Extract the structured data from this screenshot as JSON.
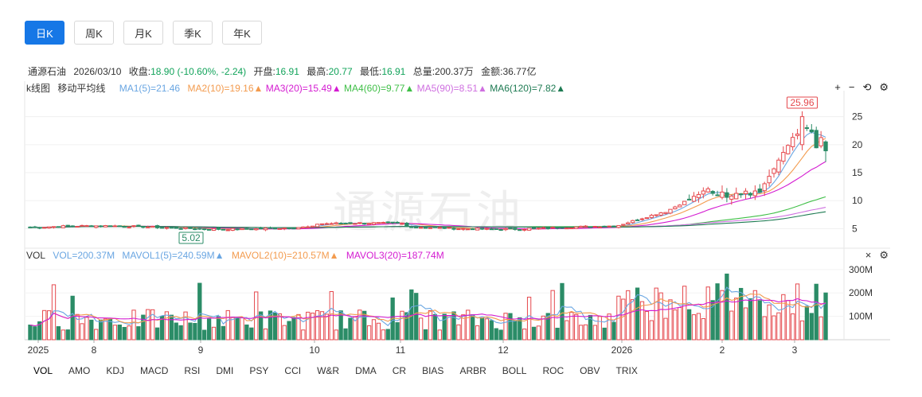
{
  "periods": [
    "日K",
    "周K",
    "月K",
    "季K",
    "年K"
  ],
  "active_period": 0,
  "stock": {
    "name": "通源石油",
    "date": "2026/03/10",
    "close_label": "收盘:",
    "close_value": "18.90 (-10.60%, -2.24)",
    "open_label": "开盘:",
    "open_value": "16.91",
    "high_label": "最高:",
    "high_value": "20.77",
    "low_label": "最低:",
    "low_value": "16.91",
    "volume_label": "总量:",
    "volume_value": "200.37万",
    "amount_label": "金额:",
    "amount_value": "36.77亿"
  },
  "kline": {
    "chart_label": "k线图",
    "ma_type": "移动平均线",
    "ma": [
      {
        "text": "MA1(5)=21.46",
        "color": "#6aa6e2"
      },
      {
        "text": "MA2(10)=19.16▲",
        "color": "#f39b4e"
      },
      {
        "text": "MA3(20)=15.49▲",
        "color": "#d41bd1"
      },
      {
        "text": "MA4(60)=9.77▲",
        "color": "#3fbf47"
      },
      {
        "text": "MA5(90)=8.51▲",
        "color": "#cf6fe0"
      },
      {
        "text": "MA6(120)=7.82▲",
        "color": "#1d7a52"
      }
    ],
    "tools": {
      "plus": "+",
      "minus": "−",
      "reset": "⟲",
      "settings": "⚙"
    },
    "watermark": "通源石油"
  },
  "volume": {
    "vol_text": "VOL",
    "vol_value": "VOL=200.37M",
    "mavol": [
      {
        "text": "MAVOL1(5)=240.59M▲",
        "color": "#6aa6e2"
      },
      {
        "text": "MAVOL2(10)=210.57M▲",
        "color": "#f39b4e"
      },
      {
        "text": "MAVOL3(20)=187.74M",
        "color": "#d41bd1"
      }
    ],
    "tools": {
      "close": "×",
      "settings": "⚙"
    }
  },
  "indicators": [
    "VOL",
    "AMO",
    "KDJ",
    "MACD",
    "RSI",
    "DMI",
    "PSY",
    "CCI",
    "W&R",
    "DMA",
    "CR",
    "BIAS",
    "ARBR",
    "BOLL",
    "ROC",
    "OBV",
    "TRIX"
  ],
  "chart_data": {
    "type": "candlestick",
    "x_ticks": [
      "2025",
      "8",
      "9",
      "10",
      "11",
      "12",
      "2026",
      "2",
      "3"
    ],
    "price_axis": {
      "ticks": [
        5,
        10,
        15,
        20,
        25
      ],
      "ylim": [
        1.5,
        28.5
      ]
    },
    "volume_axis": {
      "ticks": [
        "100M",
        "200M",
        "300M"
      ],
      "ylim": [
        0,
        330
      ]
    },
    "max_marker": "25.96",
    "min_marker": "5.02",
    "colors": {
      "up": "#e5484d",
      "down": "#2b8c67"
    }
  }
}
